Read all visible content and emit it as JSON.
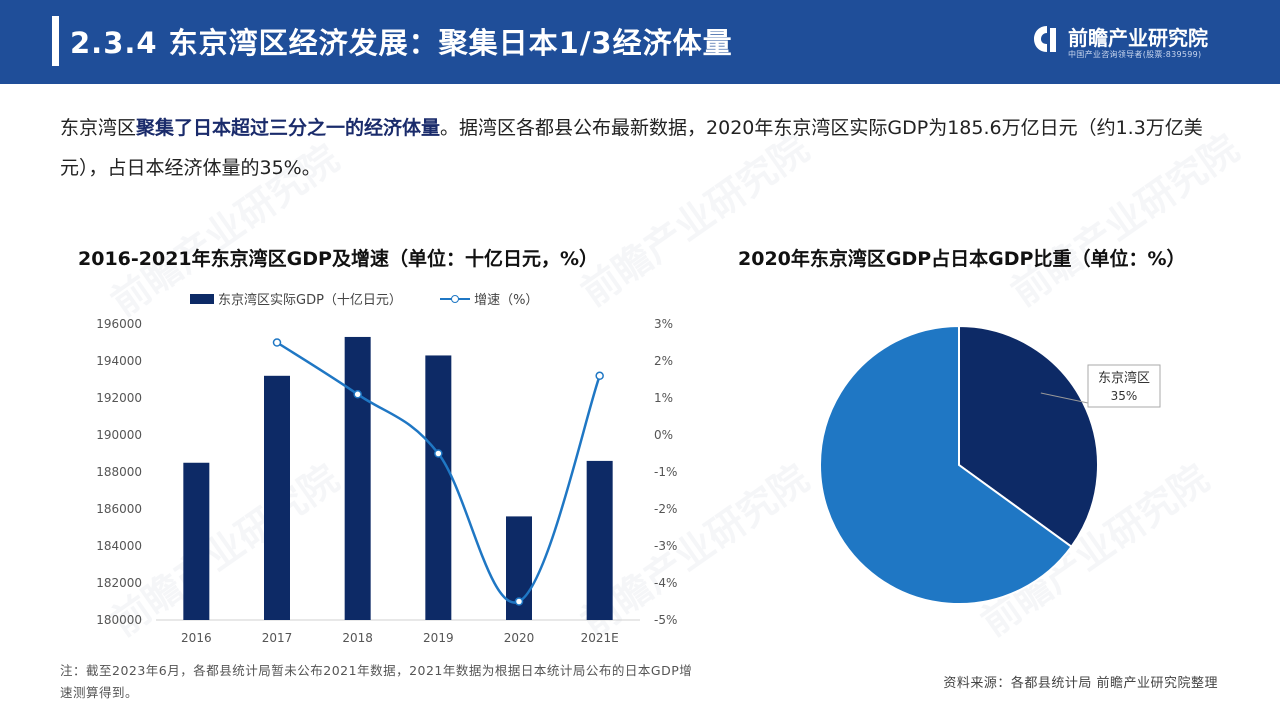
{
  "header": {
    "title": "2.3.4 东京湾区经济发展：聚集日本1/3经济体量",
    "brand_name": "前瞻产业研究院",
    "brand_sub": "中国产业咨询领导者(股票:839599)"
  },
  "intro": {
    "p1_before": "东京湾区",
    "p1_highlight": "聚集了日本超过三分之一的经济体量",
    "p1_after": "。据湾区各都县公布最新数据，2020年东京湾区实际GDP为185.6万亿日元（约1.3万亿美元），占日本经济体量的35%。"
  },
  "bar_chart": {
    "title": "2016-2021年东京湾区GDP及增速（单位：十亿日元，%）",
    "legend_bar": "东京湾区实际GDP（十亿日元）",
    "legend_line": "增速（%）"
  },
  "pie_chart": {
    "title": "2020年东京湾区GDP占日本GDP比重（单位：%）",
    "label_name": "东京湾区",
    "label_value": "35%"
  },
  "chart_data": [
    {
      "type": "bar",
      "title": "2016-2021年东京湾区GDP及增速（单位：十亿日元，%）",
      "categories": [
        "2016",
        "2017",
        "2018",
        "2019",
        "2020",
        "2021E"
      ],
      "series": [
        {
          "name": "东京湾区实际GDP（十亿日元）",
          "type": "bar",
          "axis": "left",
          "values": [
            188500,
            193200,
            195300,
            194300,
            185600,
            188600
          ],
          "color": "#0d2a66"
        },
        {
          "name": "增速（%）",
          "type": "line",
          "axis": "right",
          "values": [
            null,
            2.5,
            1.1,
            -0.5,
            -4.5,
            1.6
          ],
          "color": "#1f77c4"
        }
      ],
      "y_left": {
        "min": 180000,
        "max": 196000,
        "ticks": [
          "180000",
          "182000",
          "184000",
          "186000",
          "188000",
          "190000",
          "192000",
          "194000",
          "196000"
        ]
      },
      "y_right": {
        "min": -5,
        "max": 3,
        "ticks": [
          "-5%",
          "-4%",
          "-3%",
          "-2%",
          "-1%",
          "0%",
          "1%",
          "2%",
          "3%"
        ]
      },
      "grid": false,
      "legend_position": "top"
    },
    {
      "type": "pie",
      "title": "2020年东京湾区GDP占日本GDP比重（单位：%）",
      "slices": [
        {
          "label": "东京湾区",
          "value": 35,
          "color": "#0d2a66"
        },
        {
          "label": "",
          "value": 65,
          "color": "#1f77c4"
        }
      ]
    }
  ],
  "notes": {
    "footnote": "注：截至2023年6月，各都县统计局暂未公布2021年数据，2021年数据为根据日本统计局公布的日本GDP增速测算得到。",
    "source": "资料来源：各都县统计局 前瞻产业研究院整理"
  }
}
